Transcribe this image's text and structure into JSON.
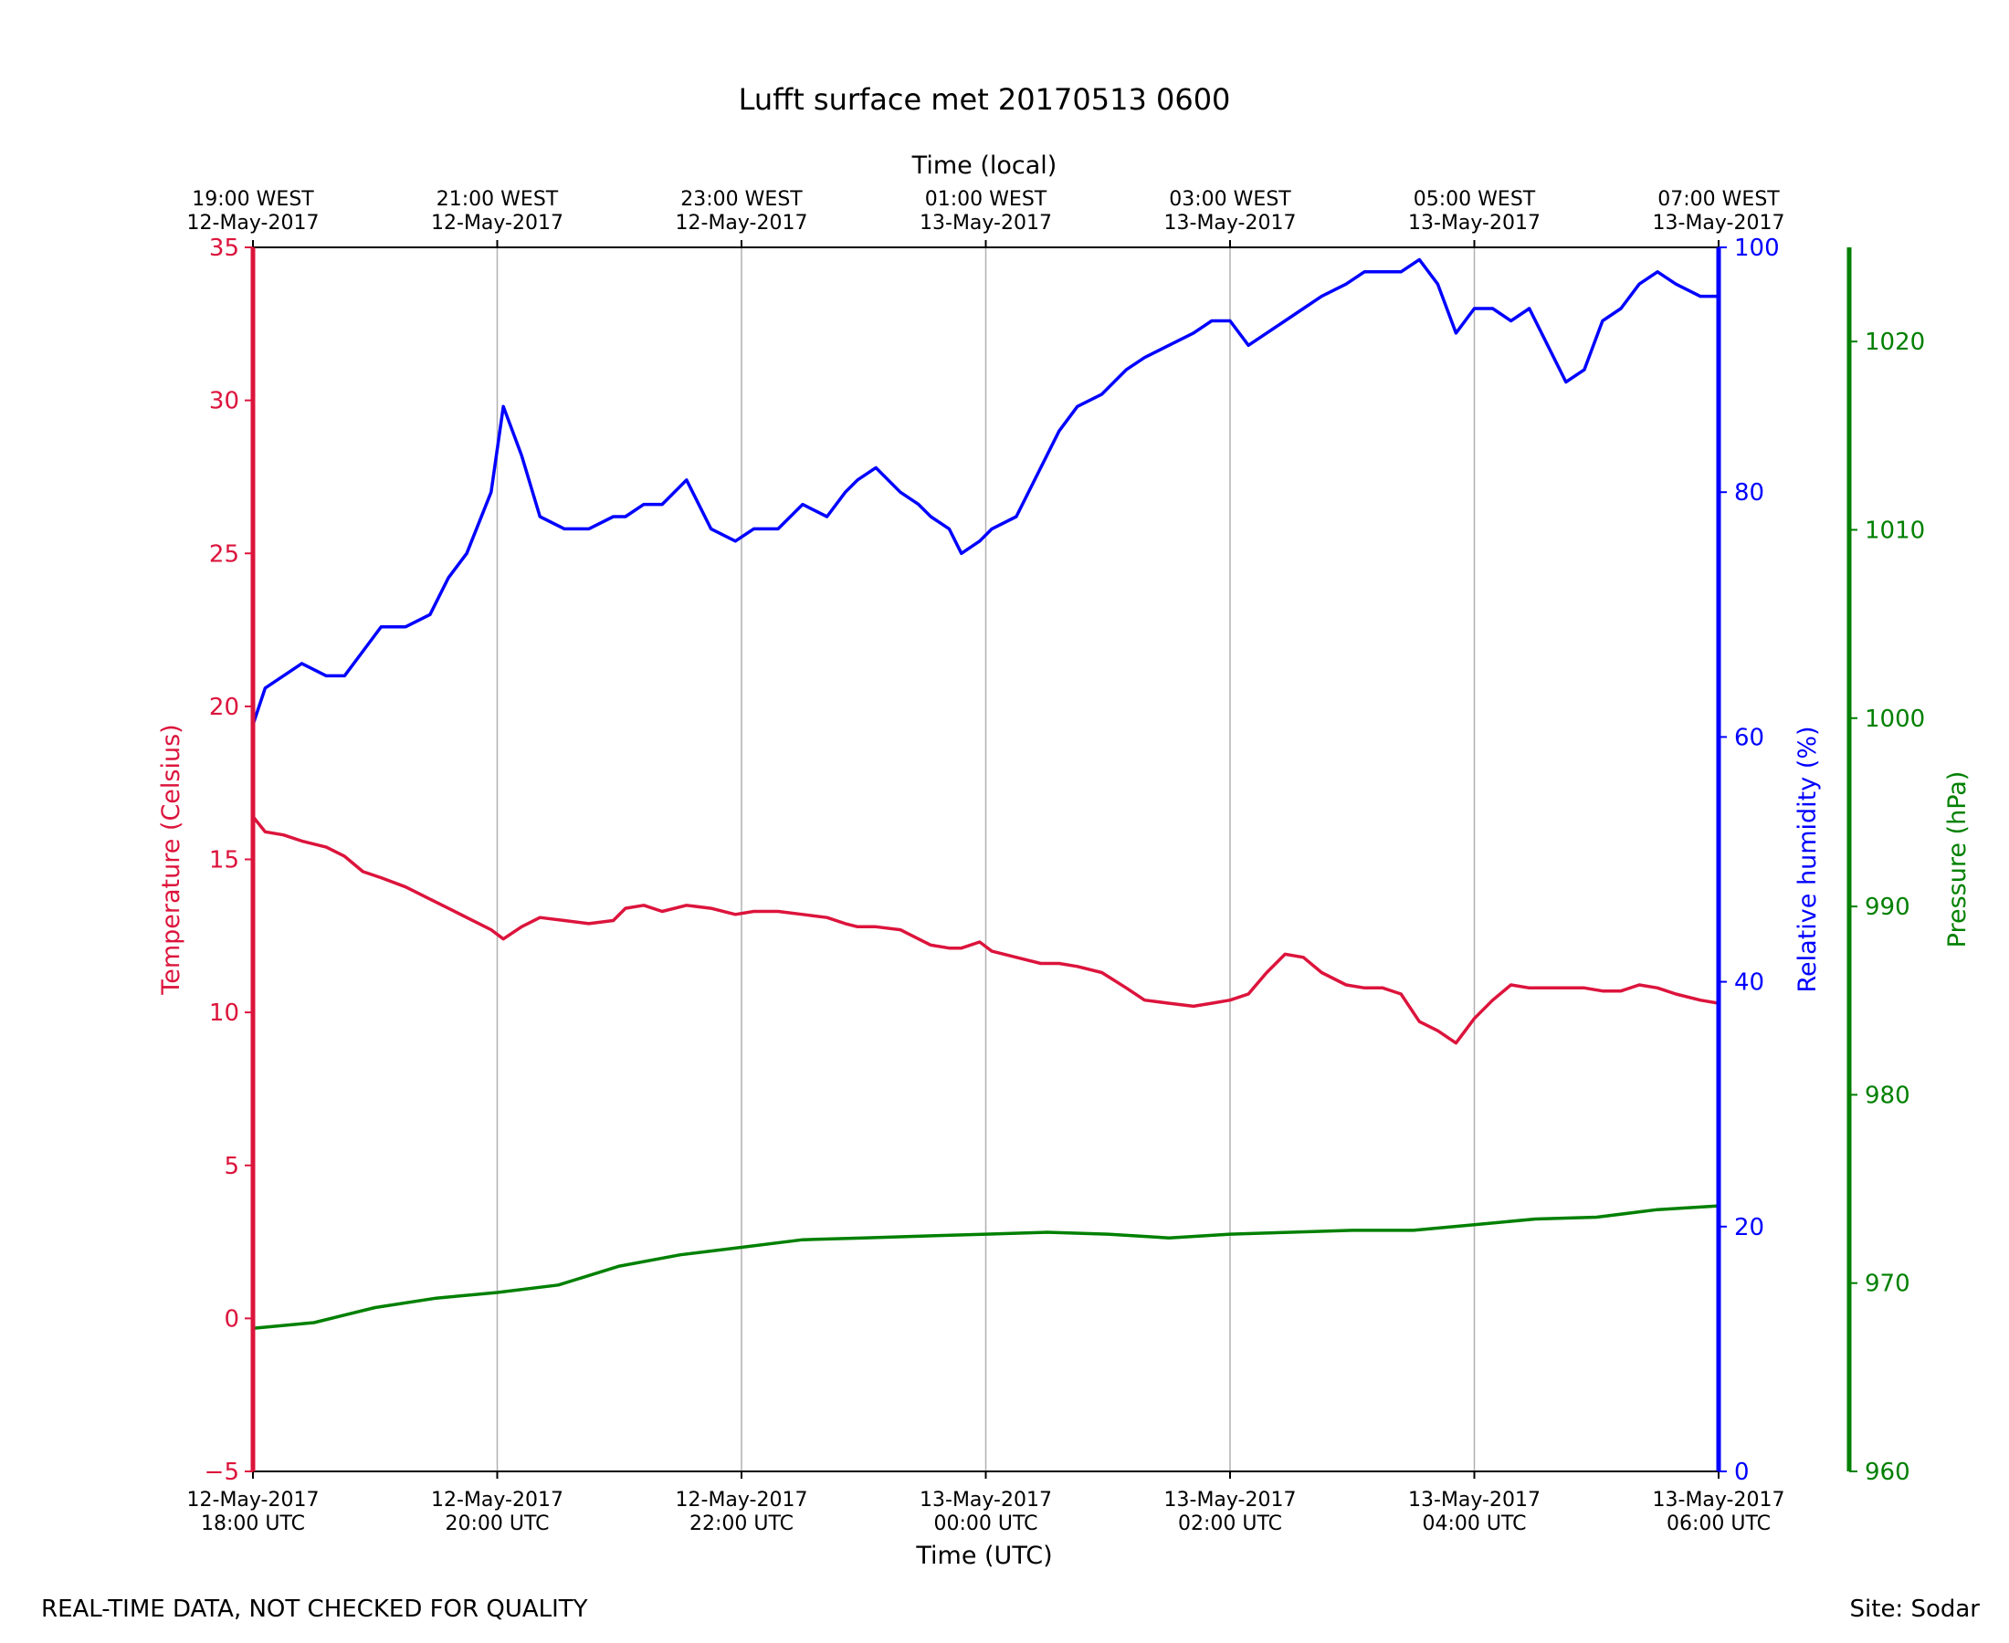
{
  "chart_data": {
    "type": "line",
    "title": "Lufft surface met 20170513 0600",
    "xlabel": "Time (UTC)",
    "x2label": "Time (local)",
    "x_range": [
      "12-May-2017 18:00 UTC",
      "13-May-2017 06:00 UTC"
    ],
    "x_ticks_bottom": [
      {
        "line1": "12-May-2017",
        "line2": "18:00 UTC"
      },
      {
        "line1": "12-May-2017",
        "line2": "20:00 UTC"
      },
      {
        "line1": "12-May-2017",
        "line2": "22:00 UTC"
      },
      {
        "line1": "13-May-2017",
        "line2": "00:00 UTC"
      },
      {
        "line1": "13-May-2017",
        "line2": "02:00 UTC"
      },
      {
        "line1": "13-May-2017",
        "line2": "04:00 UTC"
      },
      {
        "line1": "13-May-2017",
        "line2": "06:00 UTC"
      }
    ],
    "x_ticks_top": [
      {
        "line1": "19:00 WEST",
        "line2": "12-May-2017"
      },
      {
        "line1": "21:00 WEST",
        "line2": "12-May-2017"
      },
      {
        "line1": "23:00 WEST",
        "line2": "12-May-2017"
      },
      {
        "line1": "01:00 WEST",
        "line2": "13-May-2017"
      },
      {
        "line1": "03:00 WEST",
        "line2": "13-May-2017"
      },
      {
        "line1": "05:00 WEST",
        "line2": "13-May-2017"
      },
      {
        "line1": "07:00 WEST",
        "line2": "13-May-2017"
      }
    ],
    "vertical_grid": true,
    "axes": {
      "temperature": {
        "label": "Temperature (Celsius)",
        "ylim": [
          -5,
          35
        ],
        "ticks": [
          "−5",
          "0",
          "5",
          "10",
          "15",
          "20",
          "25",
          "30",
          "35"
        ],
        "color": "#dc143c",
        "side": "left"
      },
      "humidity": {
        "label": "Relative humidity (%)",
        "ylim": [
          0,
          100
        ],
        "ticks": [
          "0",
          "20",
          "40",
          "60",
          "80",
          "100"
        ],
        "color": "#0000ff",
        "side": "right"
      },
      "pressure": {
        "label": "Pressure (hPa)",
        "ylim": [
          960,
          1025
        ],
        "ticks": [
          "960",
          "970",
          "980",
          "990",
          "1000",
          "1010",
          "1020"
        ],
        "color": "#008000",
        "side": "right-outer"
      }
    },
    "series": [
      {
        "axis": "humidity",
        "color": "#0000ff",
        "x_hours_utc": [
          18.0,
          18.1,
          18.25,
          18.4,
          18.6,
          18.75,
          18.9,
          19.05,
          19.25,
          19.45,
          19.6,
          19.75,
          19.95,
          20.05,
          20.2,
          20.35,
          20.55,
          20.75,
          20.95,
          21.05,
          21.2,
          21.35,
          21.55,
          21.75,
          21.95,
          22.1,
          22.3,
          22.5,
          22.7,
          22.85,
          22.95,
          23.1,
          23.3,
          23.45,
          23.55,
          23.7,
          23.8,
          23.95,
          24.05,
          24.25,
          24.45,
          24.6,
          24.75,
          24.95,
          25.15,
          25.3,
          25.5,
          25.7,
          25.85,
          26.0,
          26.15,
          26.3,
          26.45,
          26.6,
          26.75,
          26.95,
          27.1,
          27.25,
          27.4,
          27.55,
          27.7,
          27.85,
          28.0,
          28.15,
          28.3,
          28.45,
          28.6,
          28.75,
          28.9,
          29.05,
          29.2,
          29.35,
          29.5,
          29.65,
          29.85,
          30.0
        ],
        "values": [
          61,
          64,
          65,
          66,
          65,
          65,
          67,
          69,
          69,
          70,
          73,
          75,
          80,
          87,
          83,
          78,
          77,
          77,
          78,
          78,
          79,
          79,
          81,
          77,
          76,
          77,
          77,
          79,
          78,
          80,
          81,
          82,
          80,
          79,
          78,
          77,
          75,
          76,
          77,
          78,
          82,
          85,
          87,
          88,
          90,
          91,
          92,
          93,
          94,
          94,
          92,
          93,
          94,
          95,
          96,
          97,
          98,
          98,
          98,
          99,
          97,
          93,
          95,
          95,
          94,
          95,
          92,
          89,
          90,
          94,
          95,
          97,
          98,
          97,
          96,
          96
        ]
      },
      {
        "axis": "temperature",
        "color": "#dc143c",
        "x_hours_utc": [
          18.0,
          18.1,
          18.25,
          18.4,
          18.6,
          18.75,
          18.9,
          19.05,
          19.25,
          19.45,
          19.6,
          19.75,
          19.95,
          20.05,
          20.2,
          20.35,
          20.55,
          20.75,
          20.95,
          21.05,
          21.2,
          21.35,
          21.55,
          21.75,
          21.95,
          22.1,
          22.3,
          22.5,
          22.7,
          22.85,
          22.95,
          23.1,
          23.3,
          23.45,
          23.55,
          23.7,
          23.8,
          23.95,
          24.05,
          24.25,
          24.45,
          24.6,
          24.75,
          24.95,
          25.15,
          25.3,
          25.5,
          25.7,
          25.85,
          26.0,
          26.15,
          26.3,
          26.45,
          26.6,
          26.75,
          26.95,
          27.1,
          27.25,
          27.4,
          27.55,
          27.7,
          27.85,
          28.0,
          28.15,
          28.3,
          28.45,
          28.6,
          28.75,
          28.9,
          29.05,
          29.2,
          29.35,
          29.5,
          29.65,
          29.85,
          30.0
        ],
        "values": [
          16.4,
          15.9,
          15.8,
          15.6,
          15.4,
          15.1,
          14.6,
          14.4,
          14.1,
          13.7,
          13.4,
          13.1,
          12.7,
          12.4,
          12.8,
          13.1,
          13.0,
          12.9,
          13.0,
          13.4,
          13.5,
          13.3,
          13.5,
          13.4,
          13.2,
          13.3,
          13.3,
          13.2,
          13.1,
          12.9,
          12.8,
          12.8,
          12.7,
          12.4,
          12.2,
          12.1,
          12.1,
          12.3,
          12.0,
          11.8,
          11.6,
          11.6,
          11.5,
          11.3,
          10.8,
          10.4,
          10.3,
          10.2,
          10.3,
          10.4,
          10.6,
          11.3,
          11.9,
          11.8,
          11.3,
          10.9,
          10.8,
          10.8,
          10.6,
          9.7,
          9.4,
          9.0,
          9.8,
          10.4,
          10.9,
          10.8,
          10.8,
          10.8,
          10.8,
          10.7,
          10.7,
          10.9,
          10.8,
          10.6,
          10.4,
          10.3
        ]
      },
      {
        "axis": "pressure",
        "color": "#008000",
        "x_hours_utc": [
          18.0,
          18.5,
          19.0,
          19.5,
          20.0,
          20.5,
          21.0,
          21.5,
          22.0,
          22.5,
          23.0,
          23.5,
          24.0,
          24.5,
          25.0,
          25.5,
          26.0,
          26.5,
          27.0,
          27.5,
          28.0,
          28.5,
          29.0,
          29.5,
          30.0
        ],
        "values": [
          967.6,
          967.9,
          968.7,
          969.2,
          969.5,
          969.9,
          970.9,
          971.5,
          971.9,
          972.3,
          972.4,
          972.5,
          972.6,
          972.7,
          972.6,
          972.4,
          972.6,
          972.7,
          972.8,
          972.8,
          973.1,
          973.4,
          973.5,
          973.9,
          974.1
        ]
      }
    ]
  },
  "footer": {
    "left": "REAL-TIME DATA, NOT CHECKED FOR QUALITY",
    "right": "Site: Sodar"
  }
}
